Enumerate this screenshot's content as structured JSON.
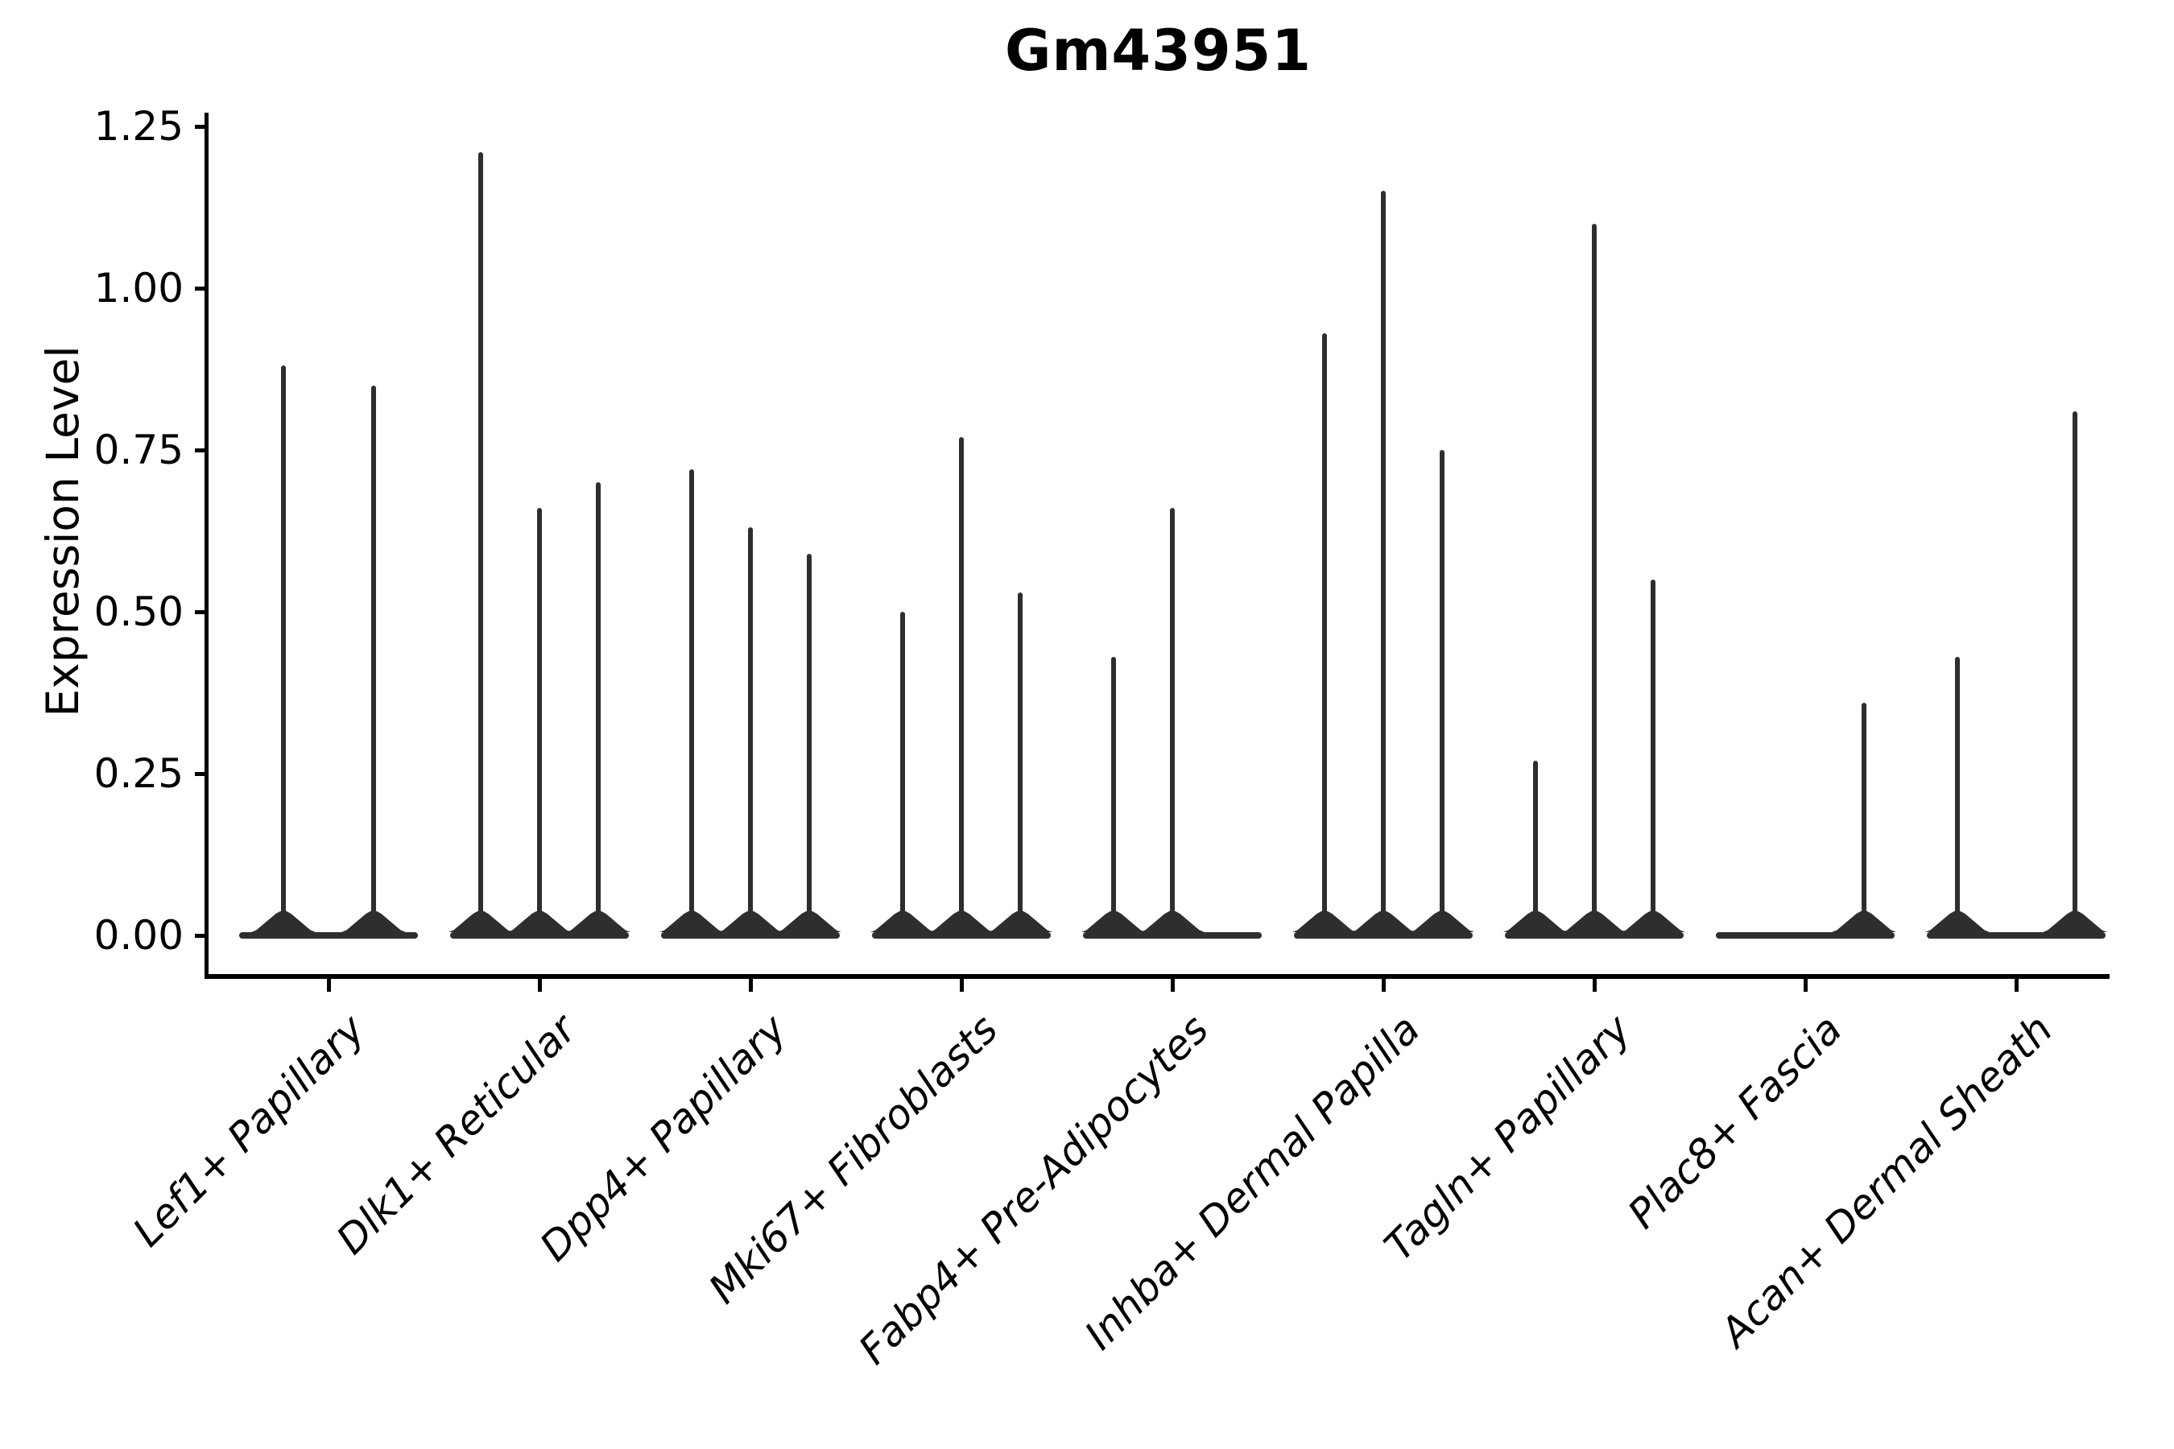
{
  "chart_data": {
    "type": "violin",
    "title": "Gm43951",
    "ylabel": "Expression Level",
    "xlabel": "",
    "ylim": [
      0,
      1.25
    ],
    "grid": false,
    "legend": "none",
    "yticks": {
      "values": [
        0,
        0.25,
        0.5,
        0.75,
        1.0,
        1.25
      ],
      "labels": [
        "0.00",
        "0.25",
        "0.50",
        "0.75",
        "1.00",
        "1.25"
      ]
    },
    "categories": [
      {
        "label": "Lef1+ Papillary",
        "violins": [
          0.88,
          0.85
        ]
      },
      {
        "label": "Dlk1+ Reticular",
        "violins": [
          1.21,
          0.66,
          0.7
        ]
      },
      {
        "label": "Dpp4+ Papillary",
        "violins": [
          0.72,
          0.63,
          0.59
        ]
      },
      {
        "label": "Mki67+ Fibroblasts",
        "violins": [
          0.5,
          0.77,
          0.53
        ]
      },
      {
        "label": "Fabp4+ Pre-Adipocytes",
        "violins": [
          0.43,
          0.66,
          0
        ]
      },
      {
        "label": "Inhba+ Dermal Papilla",
        "violins": [
          0.93,
          1.15,
          0.75
        ]
      },
      {
        "label": "Tagln+ Papillary",
        "violins": [
          0.27,
          1.1,
          0.55
        ]
      },
      {
        "label": "Plac8+ Fascia",
        "violins": [
          0,
          0,
          0.36
        ]
      },
      {
        "label": "Acan+ Dermal Sheath",
        "violins": [
          0.43,
          0,
          0.81
        ]
      }
    ],
    "colors": {
      "violin": "#2e2e2e",
      "axis": "#000000",
      "text": "#000000",
      "background": "#ffffff"
    }
  }
}
